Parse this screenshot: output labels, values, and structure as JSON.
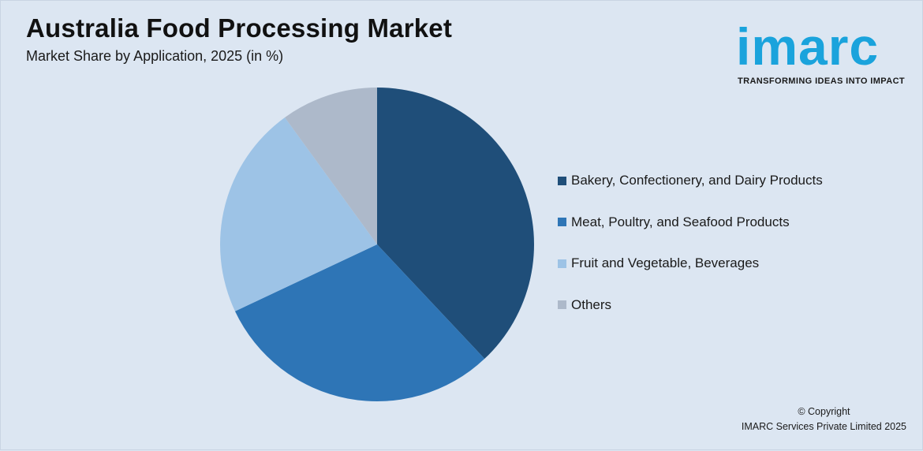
{
  "header": {
    "title": "Australia Food Processing Market",
    "subtitle": "Market Share by Application, 2025 (in %)"
  },
  "logo": {
    "word": "imarc",
    "tagline": "TRANSFORMING IDEAS INTO IMPACT",
    "color": "#1aa3dc"
  },
  "footer": {
    "line1": "© Copyright",
    "line2": "IMARC Services Private Limited 2025"
  },
  "chart_data": {
    "type": "pie",
    "title": "Australia Food Processing Market",
    "subtitle": "Market Share by Application, 2025 (in %)",
    "legend_position": "right",
    "start_angle_deg": 0,
    "direction": "clockwise",
    "categories": [
      "Bakery, Confectionery, and Dairy Products",
      "Meat, Poultry, and Seafood Products",
      "Fruit and Vegetable, Beverages",
      "Others"
    ],
    "values": [
      38,
      30,
      22,
      10
    ],
    "colors": [
      "#1f4e79",
      "#2e75b6",
      "#9dc3e6",
      "#adb9ca"
    ]
  }
}
